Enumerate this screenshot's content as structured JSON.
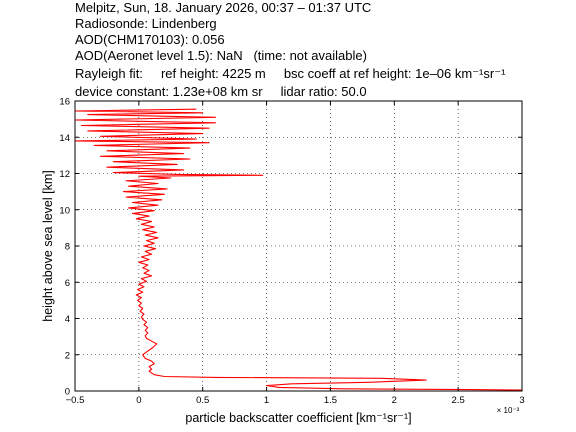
{
  "header": {
    "line1": "Melpitz, Sun, 18. January 2026, 00:37 – 01:37 UTC",
    "line2": "Radiosonde: Lindenberg",
    "line3": "AOD(CHM170103): 0.056",
    "line4": "AOD(Aeronet level 1.5): NaN   (time: not available)",
    "line5": "Rayleigh fit:     ref height: 4225 m     bsc coeff at ref height: 1e–06 km⁻¹sr⁻¹",
    "line6": "device constant: 1.23e+08 km sr     lidar ratio: 50.0"
  },
  "chart_data": {
    "type": "line",
    "xlabel": "particle backscatter coefficient [km⁻¹sr⁻¹]",
    "ylabel": "height above sea level [km]",
    "x_multiplier": "× 10⁻³",
    "xlim": [
      -0.5,
      3.0
    ],
    "ylim": [
      0,
      16
    ],
    "xticks": [
      -0.5,
      0,
      0.5,
      1,
      1.5,
      2,
      2.5,
      3
    ],
    "xtick_labels": [
      "−0.5",
      "0",
      "0.5",
      "1",
      "1.5",
      "2",
      "2.5",
      "3"
    ],
    "yticks": [
      0,
      2,
      4,
      6,
      8,
      10,
      12,
      14,
      16
    ],
    "ytick_labels": [
      "0",
      "2",
      "4",
      "6",
      "8",
      "10",
      "12",
      "14",
      "16"
    ],
    "grid": true,
    "line_color": "#ff0000",
    "series": [
      {
        "values": [
          [
            3.0,
            0.05
          ],
          [
            2.6,
            0.08
          ],
          [
            1.6,
            0.12
          ],
          [
            1.1,
            0.2
          ],
          [
            1.0,
            0.3
          ],
          [
            1.2,
            0.4
          ],
          [
            1.8,
            0.48
          ],
          [
            2.25,
            0.6
          ],
          [
            1.9,
            0.7
          ],
          [
            0.6,
            0.75
          ],
          [
            0.2,
            0.8
          ],
          [
            0.12,
            0.9
          ],
          [
            0.1,
            1.0
          ],
          [
            0.08,
            1.1
          ],
          [
            0.1,
            1.2
          ],
          [
            0.08,
            1.35
          ],
          [
            0.12,
            1.5
          ],
          [
            0.1,
            1.65
          ],
          [
            0.05,
            1.8
          ],
          [
            0.03,
            2.0
          ],
          [
            0.07,
            2.2
          ],
          [
            0.11,
            2.4
          ],
          [
            0.14,
            2.6
          ],
          [
            0.1,
            2.75
          ],
          [
            0.06,
            2.9
          ],
          [
            0.05,
            3.05
          ],
          [
            0.07,
            3.2
          ],
          [
            0.05,
            3.35
          ],
          [
            0.07,
            3.5
          ],
          [
            0.04,
            3.65
          ],
          [
            0.06,
            3.8
          ],
          [
            0.03,
            3.95
          ],
          [
            0.02,
            4.1
          ],
          [
            0.04,
            4.25
          ],
          [
            0.01,
            4.4
          ],
          [
            0.03,
            4.55
          ],
          [
            0.0,
            4.7
          ],
          [
            0.02,
            4.85
          ],
          [
            -0.01,
            5.0
          ],
          [
            0.02,
            5.15
          ],
          [
            -0.02,
            5.3
          ],
          [
            0.03,
            5.45
          ],
          [
            -0.01,
            5.6
          ],
          [
            0.04,
            5.75
          ],
          [
            0.0,
            5.9
          ],
          [
            0.06,
            6.05
          ],
          [
            0.02,
            6.2
          ],
          [
            0.1,
            6.35
          ],
          [
            0.04,
            6.5
          ],
          [
            0.08,
            6.65
          ],
          [
            0.03,
            6.8
          ],
          [
            0.07,
            6.95
          ],
          [
            0.0,
            7.1
          ],
          [
            0.08,
            7.25
          ],
          [
            0.02,
            7.4
          ],
          [
            0.1,
            7.55
          ],
          [
            0.05,
            7.7
          ],
          [
            0.13,
            7.85
          ],
          [
            0.04,
            8.0
          ],
          [
            0.12,
            8.15
          ],
          [
            0.06,
            8.3
          ],
          [
            0.15,
            8.45
          ],
          [
            0.05,
            8.6
          ],
          [
            0.14,
            8.75
          ],
          [
            0.03,
            8.9
          ],
          [
            0.12,
            9.05
          ],
          [
            0.02,
            9.2
          ],
          [
            0.1,
            9.35
          ],
          [
            -0.02,
            9.5
          ],
          [
            0.08,
            9.65
          ],
          [
            -0.05,
            9.8
          ],
          [
            0.12,
            9.95
          ],
          [
            -0.08,
            10.1
          ],
          [
            0.15,
            10.25
          ],
          [
            -0.05,
            10.4
          ],
          [
            0.18,
            10.55
          ],
          [
            -0.1,
            10.7
          ],
          [
            0.2,
            10.85
          ],
          [
            -0.12,
            11.0
          ],
          [
            0.22,
            11.15
          ],
          [
            -0.08,
            11.3
          ],
          [
            0.15,
            11.45
          ],
          [
            -0.1,
            11.6
          ],
          [
            0.25,
            11.75
          ],
          [
            0.0,
            11.85
          ],
          [
            0.97,
            11.9
          ],
          [
            0.3,
            11.95
          ],
          [
            -0.2,
            12.05
          ],
          [
            0.35,
            12.2
          ],
          [
            -0.25,
            12.35
          ],
          [
            0.3,
            12.5
          ],
          [
            -0.2,
            12.65
          ],
          [
            0.4,
            12.8
          ],
          [
            -0.3,
            12.95
          ],
          [
            0.35,
            13.1
          ],
          [
            -0.25,
            13.25
          ],
          [
            0.4,
            13.4
          ],
          [
            -0.35,
            13.55
          ],
          [
            0.55,
            13.7
          ],
          [
            -0.5,
            13.8
          ],
          [
            0.45,
            13.9
          ],
          [
            -0.3,
            14.05
          ],
          [
            0.5,
            14.2
          ],
          [
            -0.4,
            14.35
          ],
          [
            0.55,
            14.5
          ],
          [
            -0.45,
            14.65
          ],
          [
            0.6,
            14.8
          ],
          [
            -0.5,
            14.95
          ],
          [
            0.6,
            15.1
          ],
          [
            -0.4,
            15.25
          ],
          [
            0.5,
            15.35
          ],
          [
            -0.5,
            15.45
          ],
          [
            0.45,
            15.55
          ]
        ]
      }
    ]
  }
}
